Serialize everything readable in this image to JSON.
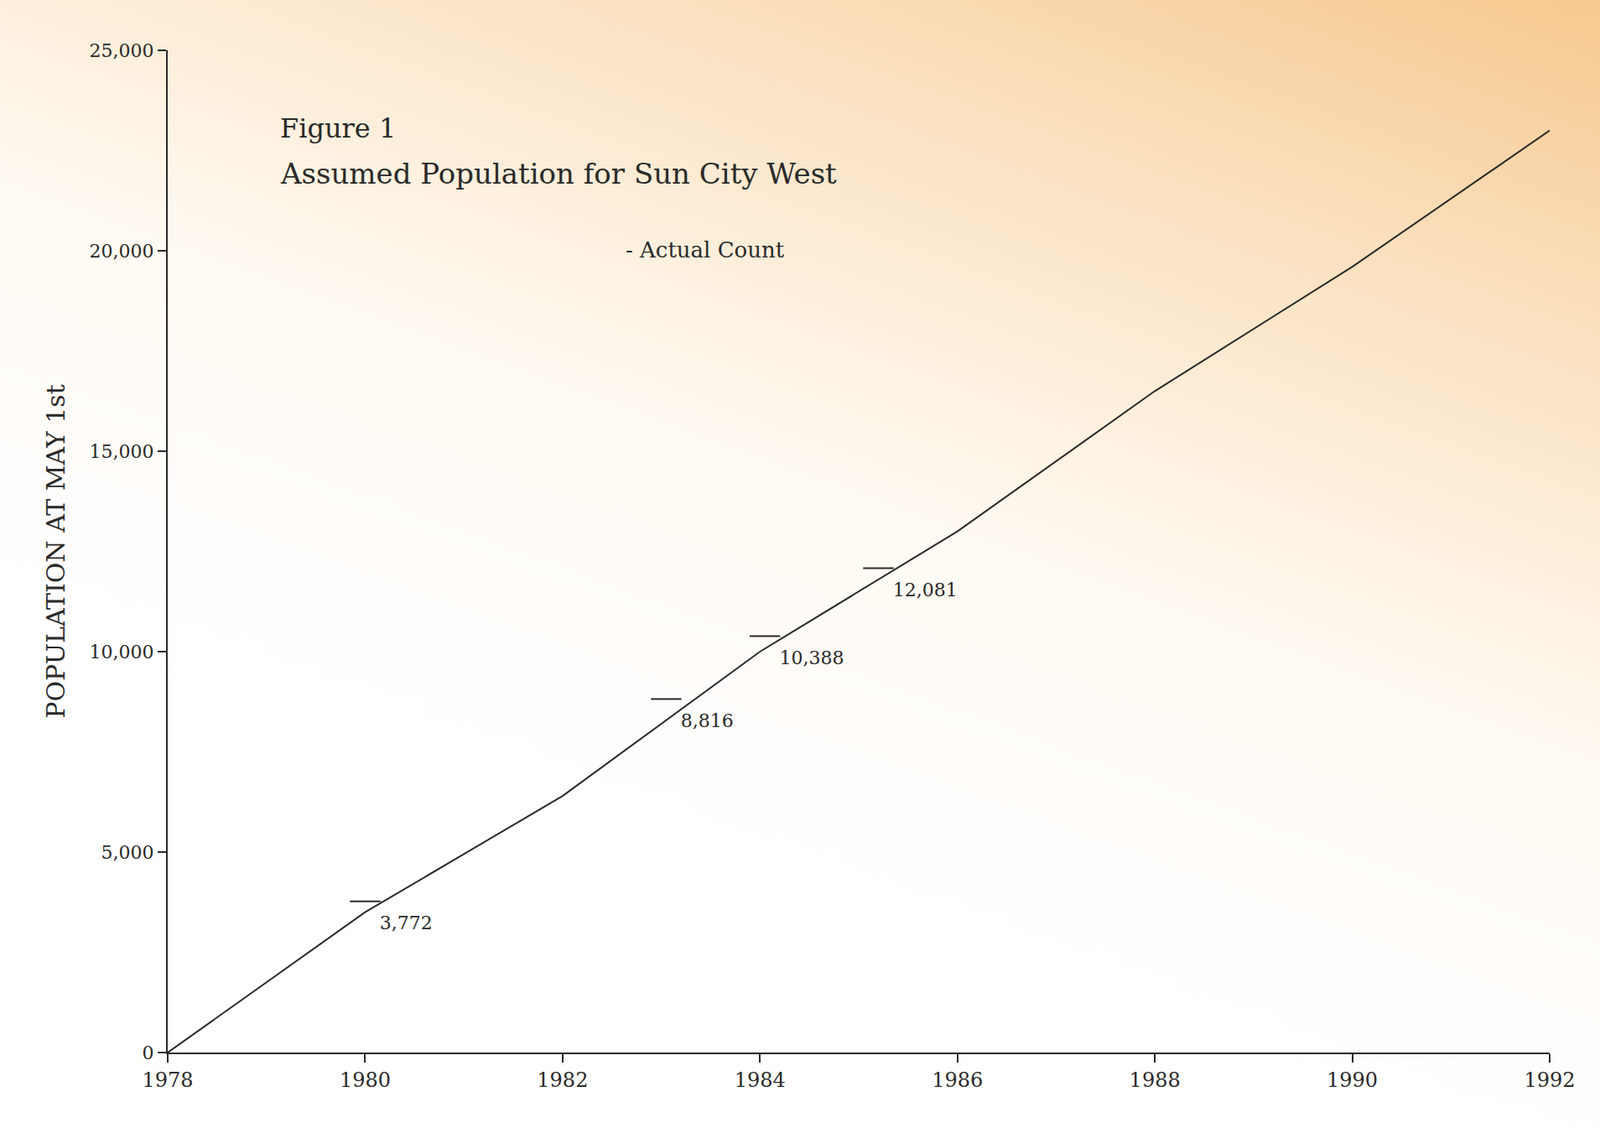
{
  "chart_data": {
    "type": "line",
    "title": "Figure 1",
    "subtitle": "Assumed Population for Sun City West",
    "y_label": "POPULATION AT MAY 1st",
    "x": [
      1978,
      1980,
      1982,
      1984,
      1986,
      1988,
      1990,
      1992
    ],
    "series": [
      {
        "color": "#2a2a2a",
        "line_style": "solid",
        "values": [
          0,
          3500,
          6400,
          10000,
          13000,
          16500,
          19600,
          23000
        ]
      },
      {
        "name": "- Actual Count",
        "type": "scatter",
        "marker": "tick",
        "color": "#2a2a2a",
        "data_labels": true,
        "x": [
          1980,
          1983.05,
          1984.05,
          1985.2
        ],
        "values": [
          3772,
          8816,
          10388,
          12081
        ],
        "value_labels": [
          "3,772",
          "8,816",
          "10,388",
          "12,081"
        ]
      }
    ],
    "xlim": [
      1978,
      1992
    ],
    "ylim": [
      0,
      25000
    ],
    "xticks": [
      1978,
      1980,
      1982,
      1984,
      1986,
      1988,
      1990,
      1992
    ],
    "yticks": [
      0,
      {
        "value": 5000,
        "label": "5,000"
      },
      {
        "value": 10000,
        "label": "10,000"
      },
      {
        "value": 15000,
        "label": "15,000"
      },
      {
        "value": 20000,
        "label": "20,000"
      },
      {
        "value": 25000,
        "label": "25,000"
      }
    ],
    "grid": false
  }
}
